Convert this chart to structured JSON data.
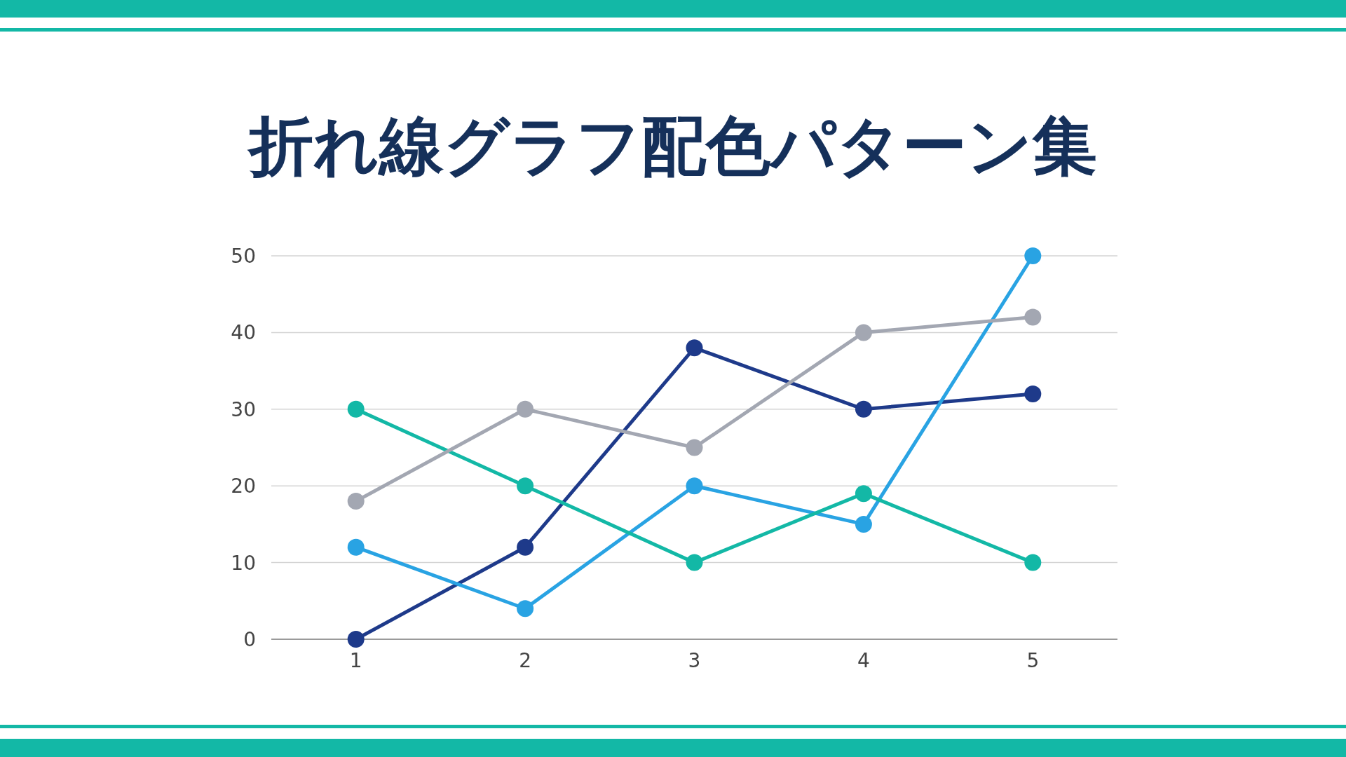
{
  "chart_data": {
    "type": "line",
    "title": "折れ線グラフ配色パターン集",
    "categories": [
      "1",
      "2",
      "3",
      "4",
      "5"
    ],
    "series": [
      {
        "color": "#1e3a8a",
        "values": [
          0,
          12,
          38,
          30,
          32
        ]
      },
      {
        "color": "#29a3e3",
        "values": [
          12,
          4,
          20,
          15,
          50
        ]
      },
      {
        "color": "#13b8a6",
        "values": [
          30,
          20,
          10,
          19,
          10
        ]
      },
      {
        "color": "#a3a7b2",
        "values": [
          18,
          30,
          25,
          40,
          42
        ]
      }
    ],
    "ylim": [
      0,
      50
    ],
    "yticks": [
      0,
      10,
      20,
      30,
      40,
      50
    ],
    "grid": "y",
    "marker": "circle"
  }
}
